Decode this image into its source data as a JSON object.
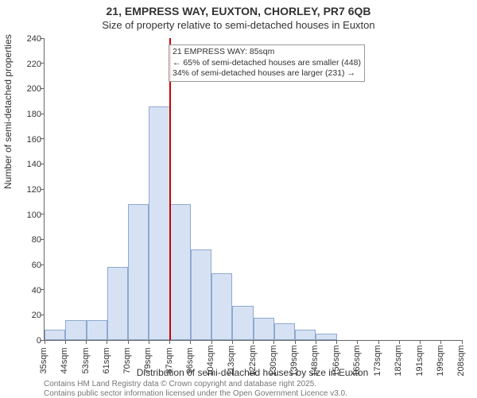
{
  "chart": {
    "type": "histogram",
    "title_main": "21, EMPRESS WAY, EUXTON, CHORLEY, PR7 6QB",
    "title_sub": "Size of property relative to semi-detached houses in Euxton",
    "ylabel": "Number of semi-detached properties",
    "xlabel": "Distribution of semi-detached houses by size in Euxton",
    "title_fontsize": 14,
    "label_fontsize": 12,
    "tick_fontsize": 11,
    "background_color": "#ffffff",
    "bar_fill": "#d6e2f3",
    "bar_border": "#8fa8d0",
    "marker_color": "#cc0000",
    "axis_color": "#666666",
    "ylim": [
      0,
      240
    ],
    "ytick_step": 20,
    "yticks": [
      0,
      20,
      40,
      60,
      80,
      100,
      120,
      140,
      160,
      180,
      200,
      220,
      240
    ],
    "xtick_start": 35,
    "xtick_step": 8.7,
    "xtick_suffix": "sqm",
    "xticks": [
      "35sqm",
      "44sqm",
      "53sqm",
      "61sqm",
      "70sqm",
      "79sqm",
      "87sqm",
      "96sqm",
      "104sqm",
      "113sqm",
      "122sqm",
      "130sqm",
      "139sqm",
      "148sqm",
      "156sqm",
      "165sqm",
      "173sqm",
      "182sqm",
      "191sqm",
      "199sqm",
      "208sqm"
    ],
    "values": [
      8,
      16,
      16,
      58,
      108,
      186,
      108,
      72,
      53,
      27,
      18,
      13,
      8,
      5,
      0,
      0,
      0,
      0,
      0,
      0
    ],
    "marker_bin_index": 6,
    "annotations": {
      "line1": "21 EMPRESS WAY: 85sqm",
      "line2": "← 65% of semi-detached houses are smaller (448)",
      "line3": "34% of semi-detached houses are larger (231) →"
    },
    "footer1": "Contains HM Land Registry data © Crown copyright and database right 2025.",
    "footer2": "Contains public sector information licensed under the Open Government Licence v3.0."
  }
}
